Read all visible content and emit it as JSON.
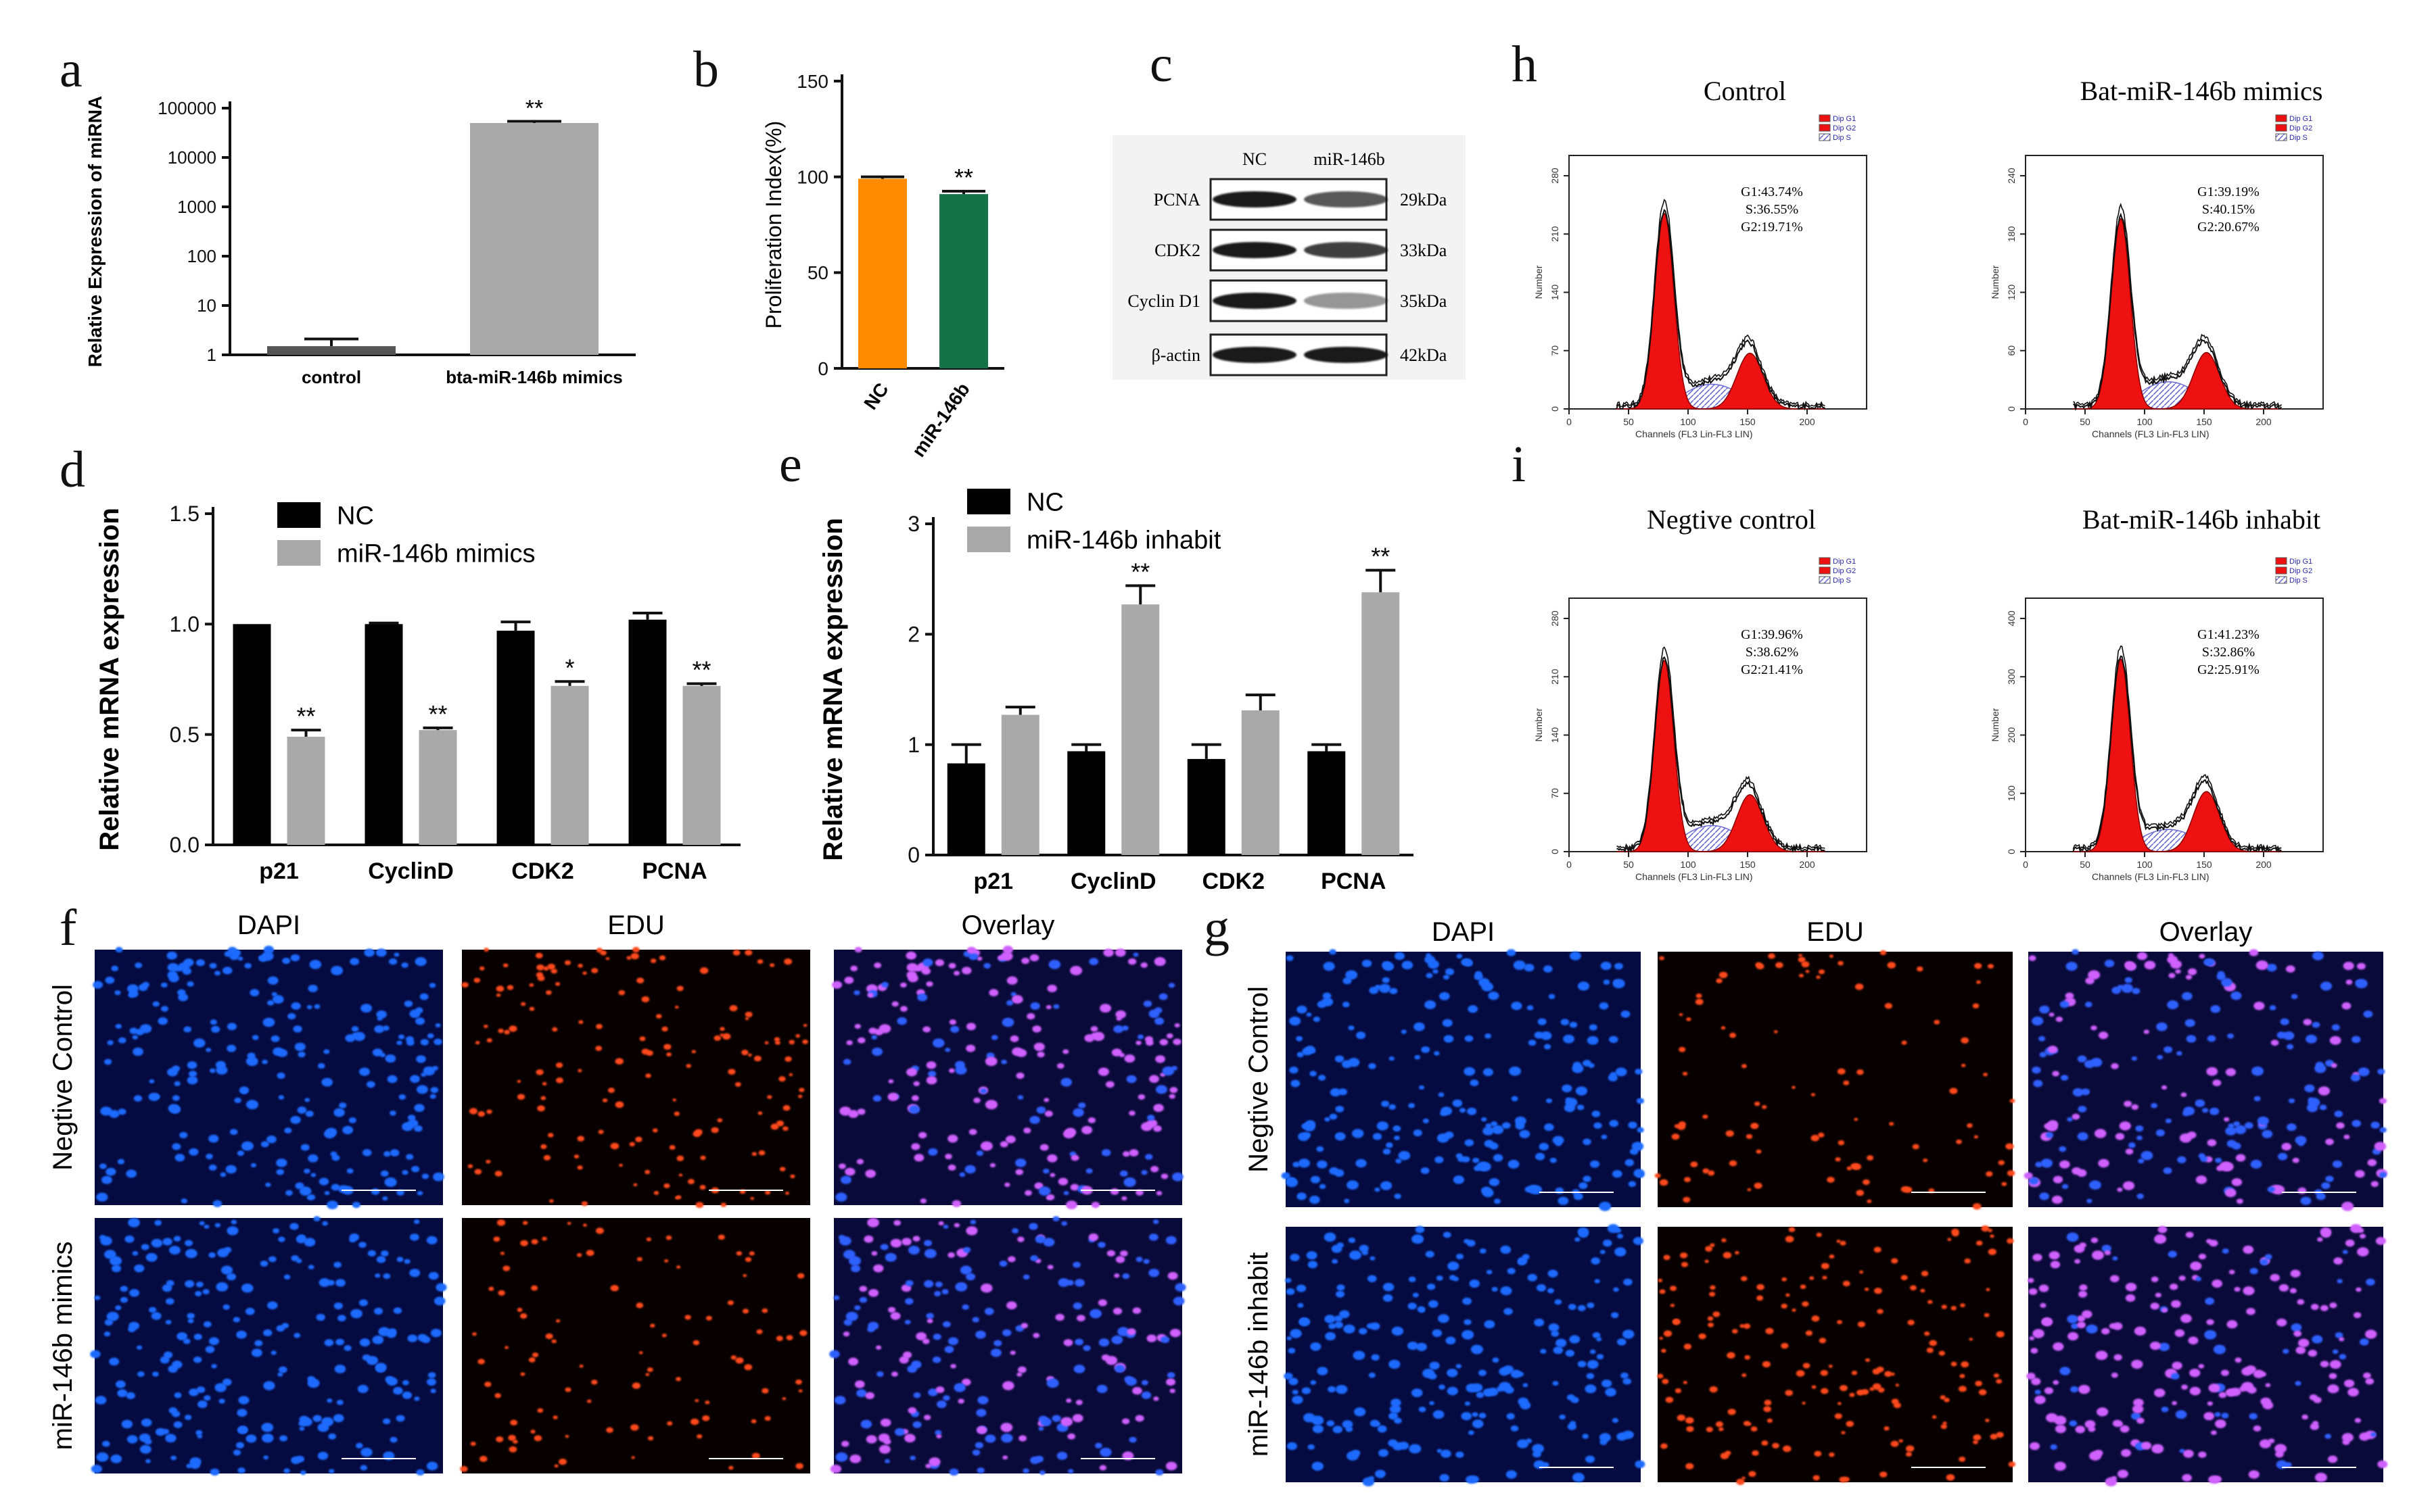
{
  "panel_labels": {
    "a": "a",
    "b": "b",
    "c": "c",
    "d": "d",
    "e": "e",
    "f": "f",
    "g": "g",
    "h": "h",
    "i": "i"
  },
  "chart_data": [
    {
      "id": "a",
      "type": "bar",
      "categories": [
        "control",
        "bta-miR-146b mimics"
      ],
      "values": [
        1.5,
        50000
      ],
      "errors": [
        0.6,
        4000
      ],
      "significance": [
        "",
        "**"
      ],
      "colors": [
        "#555555",
        "#a9a9a9"
      ],
      "ylabel": "Relative Expression of miRNA",
      "yscale": "log",
      "ylim": [
        1,
        100000
      ],
      "yticks": [
        1,
        10,
        100,
        1000,
        10000,
        100000
      ],
      "yticklabels": [
        "1",
        "10",
        "100",
        "1000",
        "10000",
        "100000"
      ]
    },
    {
      "id": "b",
      "type": "bar",
      "categories": [
        "NC",
        "miR-146b"
      ],
      "values": [
        99,
        91
      ],
      "errors": [
        1,
        1.5
      ],
      "significance": [
        "",
        "**"
      ],
      "colors": [
        "#ff8c00",
        "#157347"
      ],
      "ylabel": "Proliferation Index(%)",
      "ylim": [
        0,
        150
      ],
      "yticks": [
        0,
        50,
        100,
        150
      ]
    },
    {
      "id": "d",
      "type": "bar",
      "categories": [
        "p21",
        "CyclinD",
        "CDK2",
        "PCNA"
      ],
      "series": [
        {
          "name": "NC",
          "values": [
            1.0,
            1.0,
            0.97,
            1.02
          ],
          "errors": [
            0.0,
            0.005,
            0.04,
            0.03
          ],
          "color": "#000000"
        },
        {
          "name": "miR-146b mimics",
          "values": [
            0.49,
            0.52,
            0.72,
            0.72
          ],
          "errors": [
            0.03,
            0.01,
            0.02,
            0.01
          ],
          "color": "#a9a9a9",
          "significance": [
            "**",
            "**",
            "*",
            "**"
          ]
        }
      ],
      "ylabel": "Relative mRNA expression",
      "ylim": [
        0,
        1.5
      ],
      "yticks": [
        0.0,
        0.5,
        1.0,
        1.5
      ],
      "yticklabels": [
        "0.0",
        "0.5",
        "1.0",
        "1.5"
      ],
      "legend": "top-left"
    },
    {
      "id": "e",
      "type": "bar",
      "categories": [
        "p21",
        "CyclinD",
        "CDK2",
        "PCNA"
      ],
      "series": [
        {
          "name": "NC",
          "values": [
            0.83,
            0.94,
            0.87,
            0.94
          ],
          "errors": [
            0.17,
            0.06,
            0.13,
            0.06
          ],
          "color": "#000000"
        },
        {
          "name": "miR-146b inhabit",
          "values": [
            1.27,
            2.27,
            1.31,
            2.38
          ],
          "errors": [
            0.07,
            0.17,
            0.14,
            0.2
          ],
          "color": "#a9a9a9",
          "significance": [
            "",
            "**",
            "",
            "**"
          ]
        }
      ],
      "ylabel": "Relative mRNA expression",
      "ylim": [
        0,
        3
      ],
      "yticks": [
        0,
        1,
        2,
        3
      ],
      "legend": "top-left"
    }
  ],
  "western": {
    "columns": [
      "NC",
      "miR-146b"
    ],
    "rows": [
      {
        "protein": "PCNA",
        "size": "29kDa"
      },
      {
        "protein": "CDK2",
        "size": "33kDa"
      },
      {
        "protein": "Cyclin D1",
        "size": "35kDa"
      },
      {
        "protein": "β-actin",
        "size": "42kDa"
      }
    ]
  },
  "flow_cytometry": {
    "legend": [
      "Dip G1",
      "Dip G2",
      "Dip S"
    ],
    "xlabel": "Channels (FL3 Lin-FL3 LIN)",
    "ylabel": "Number",
    "xticks": [
      "0",
      "50",
      "100",
      "150",
      "200"
    ],
    "panels": [
      {
        "title": "Control",
        "stats": [
          "G1:43.74%",
          "S:36.55%",
          "G2:19.71%"
        ],
        "yticks": [
          "0",
          "70",
          "140",
          "210",
          "280"
        ],
        "g1": 0.4374,
        "s": 0.3655,
        "g2": 0.1971
      },
      {
        "title": "Bat-miR-146b mimics",
        "stats": [
          "G1:39.19%",
          "S:40.15%",
          "G2:20.67%"
        ],
        "yticks": [
          "0",
          "60",
          "120",
          "180",
          "240"
        ],
        "g1": 0.3919,
        "s": 0.4015,
        "g2": 0.2067
      },
      {
        "title": "Negtive control",
        "stats": [
          "G1:39.96%",
          "S:38.62%",
          "G2:21.41%"
        ],
        "yticks": [
          "0",
          "70",
          "140",
          "210",
          "280"
        ],
        "g1": 0.3996,
        "s": 0.3862,
        "g2": 0.2141
      },
      {
        "title": "Bat-miR-146b inhabit",
        "stats": [
          "G1:41.23%",
          "S:32.86%",
          "G2:25.91%"
        ],
        "yticks": [
          "0",
          "100",
          "200",
          "300",
          "400"
        ],
        "g1": 0.4123,
        "s": 0.3286,
        "g2": 0.2591
      }
    ]
  },
  "microscopy": {
    "columns": [
      "DAPI",
      "EDU",
      "Overlay"
    ],
    "f_rows": [
      "Negtive Control",
      "miR-146b mimics"
    ],
    "g_rows": [
      "Negtive Control",
      "miR-146b inhabit"
    ]
  }
}
